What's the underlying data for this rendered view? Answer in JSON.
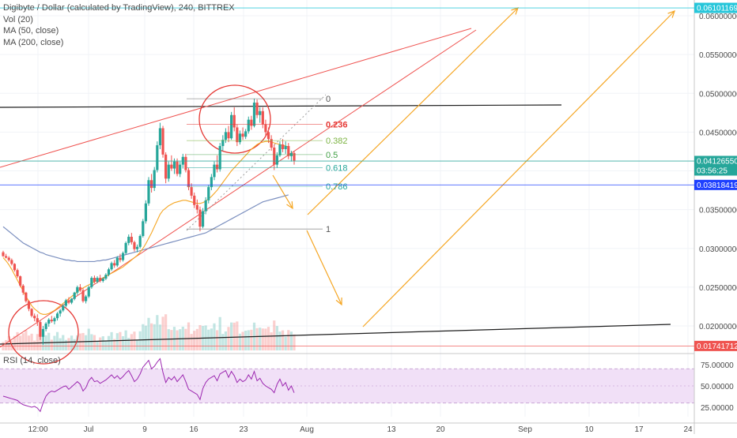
{
  "legend": {
    "title": "Digibyte / Dollar (calculated by TradingView), 240, BITTREX",
    "indicators": [
      "Vol (20)",
      "MA (50, close)",
      "MA (200, close)"
    ]
  },
  "rsi": {
    "label": "RSI (14, close)",
    "ticks": [
      "75.00000",
      "50.00000",
      "25.00000"
    ],
    "band": [
      30,
      70
    ]
  },
  "colors": {
    "up": "#26a69a",
    "down": "#ef5350",
    "ma50": "#f5a623",
    "ma200": "#7b8fbf",
    "rsi_line": "#9c27b0",
    "rsi_band": "#f1e0f7",
    "trend_red": "#ef5350",
    "arrow": "#f5a623",
    "support": "#1e1e1e",
    "price_tag": "#2962ff",
    "circle": "#e53935"
  },
  "chart_data": {
    "type": "candlestick",
    "ylim": [
      0.0172,
      0.0625
    ],
    "y_ticks": [
      "0.06000000",
      "0.05500000",
      "0.05000000",
      "0.04500000",
      "0.04000000",
      "0.03500000",
      "0.03000000",
      "0.02500000",
      "0.02000000"
    ],
    "x_ticks": [
      "12:00",
      "Jul",
      "9",
      "16",
      "23",
      "Aug",
      "13",
      "20",
      "Sep",
      "10",
      "17",
      "24"
    ],
    "price_labels": [
      {
        "text": "0.06101169",
        "value": 0.06101169,
        "style": "cyan"
      },
      {
        "text": "0.04126550",
        "value": 0.0412655,
        "style": "teal"
      },
      {
        "text": "03:56:25",
        "value": 0.0401,
        "style": "teal"
      },
      {
        "text": "0.03818419",
        "value": 0.03818419,
        "style": "blue"
      },
      {
        "text": "0.01741712",
        "value": 0.01741712,
        "style": "red"
      }
    ],
    "fib_levels": [
      {
        "label": "0",
        "value": 0.0493,
        "color": "#555555"
      },
      {
        "label": "0.236",
        "value": 0.046,
        "color": "#e53935"
      },
      {
        "label": "0.382",
        "value": 0.0439,
        "color": "#7cb342"
      },
      {
        "label": "0.5",
        "value": 0.0421,
        "color": "#43a047"
      },
      {
        "label": "0.618",
        "value": 0.0404,
        "color": "#26a69a"
      },
      {
        "label": "0.786",
        "value": 0.038,
        "color": "#26a69a"
      },
      {
        "label": "1",
        "value": 0.0325,
        "color": "#555555"
      }
    ],
    "candles": [
      [
        0.0295,
        0.0297,
        0.0289,
        0.029
      ],
      [
        0.029,
        0.0293,
        0.0287,
        0.0288
      ],
      [
        0.0288,
        0.029,
        0.0283,
        0.0285
      ],
      [
        0.0285,
        0.0287,
        0.0278,
        0.028
      ],
      [
        0.028,
        0.0281,
        0.027,
        0.0272
      ],
      [
        0.0272,
        0.0274,
        0.0262,
        0.0264
      ],
      [
        0.0264,
        0.0265,
        0.025,
        0.0252
      ],
      [
        0.0252,
        0.0254,
        0.024,
        0.0243
      ],
      [
        0.0243,
        0.0244,
        0.023,
        0.0232
      ],
      [
        0.0232,
        0.0233,
        0.0219,
        0.0222
      ],
      [
        0.0222,
        0.0223,
        0.0211,
        0.0213
      ],
      [
        0.0213,
        0.0216,
        0.0206,
        0.021
      ],
      [
        0.021,
        0.0215,
        0.02,
        0.0205
      ],
      [
        0.0205,
        0.0207,
        0.0182,
        0.0186
      ],
      [
        0.0186,
        0.02,
        0.0176,
        0.0196
      ],
      [
        0.0196,
        0.0205,
        0.0193,
        0.0203
      ],
      [
        0.0203,
        0.021,
        0.0199,
        0.0208
      ],
      [
        0.0208,
        0.0213,
        0.0204,
        0.0206
      ],
      [
        0.0206,
        0.0212,
        0.0202,
        0.021
      ],
      [
        0.021,
        0.0218,
        0.0207,
        0.0216
      ],
      [
        0.0216,
        0.0222,
        0.0212,
        0.022
      ],
      [
        0.022,
        0.0228,
        0.0218,
        0.0226
      ],
      [
        0.0226,
        0.0235,
        0.0224,
        0.0233
      ],
      [
        0.0233,
        0.0237,
        0.0228,
        0.023
      ],
      [
        0.023,
        0.0236,
        0.0228,
        0.0235
      ],
      [
        0.0235,
        0.0244,
        0.0233,
        0.0243
      ],
      [
        0.0243,
        0.0252,
        0.024,
        0.025
      ],
      [
        0.025,
        0.0254,
        0.0244,
        0.0246
      ],
      [
        0.0246,
        0.0249,
        0.023,
        0.0232
      ],
      [
        0.0232,
        0.024,
        0.0229,
        0.0238
      ],
      [
        0.0238,
        0.0252,
        0.0236,
        0.025
      ],
      [
        0.025,
        0.0264,
        0.0248,
        0.0262
      ],
      [
        0.0262,
        0.0265,
        0.0255,
        0.0257
      ],
      [
        0.0257,
        0.0264,
        0.0255,
        0.0262
      ],
      [
        0.0262,
        0.0266,
        0.0256,
        0.0258
      ],
      [
        0.0258,
        0.0263,
        0.0256,
        0.0261
      ],
      [
        0.0261,
        0.0268,
        0.0259,
        0.0266
      ],
      [
        0.0266,
        0.0275,
        0.0264,
        0.0273
      ],
      [
        0.0273,
        0.0283,
        0.0271,
        0.0281
      ],
      [
        0.0281,
        0.0285,
        0.0275,
        0.0278
      ],
      [
        0.0278,
        0.029,
        0.0276,
        0.0288
      ],
      [
        0.0288,
        0.0293,
        0.0282,
        0.0285
      ],
      [
        0.0285,
        0.0296,
        0.0283,
        0.0294
      ],
      [
        0.0294,
        0.0309,
        0.0292,
        0.0307
      ],
      [
        0.0307,
        0.0318,
        0.0304,
        0.0315
      ],
      [
        0.0315,
        0.032,
        0.0305,
        0.0308
      ],
      [
        0.0308,
        0.031,
        0.0296,
        0.0299
      ],
      [
        0.0299,
        0.0305,
        0.0295,
        0.0302
      ],
      [
        0.0302,
        0.0318,
        0.03,
        0.0316
      ],
      [
        0.0316,
        0.0338,
        0.0314,
        0.0335
      ],
      [
        0.0335,
        0.0362,
        0.0332,
        0.0358
      ],
      [
        0.0358,
        0.0392,
        0.0355,
        0.0388
      ],
      [
        0.0388,
        0.0396,
        0.0372,
        0.0378
      ],
      [
        0.0378,
        0.0405,
        0.0374,
        0.0401
      ],
      [
        0.0401,
        0.0438,
        0.0398,
        0.0433
      ],
      [
        0.0433,
        0.0462,
        0.0428,
        0.0455
      ],
      [
        0.0455,
        0.0458,
        0.0417,
        0.0421
      ],
      [
        0.0421,
        0.0424,
        0.0384,
        0.039
      ],
      [
        0.039,
        0.0412,
        0.0386,
        0.0408
      ],
      [
        0.0408,
        0.042,
        0.04,
        0.0403
      ],
      [
        0.0403,
        0.0416,
        0.0396,
        0.0412
      ],
      [
        0.0412,
        0.0416,
        0.0393,
        0.0396
      ],
      [
        0.0396,
        0.0412,
        0.0392,
        0.0408
      ],
      [
        0.0408,
        0.0422,
        0.0403,
        0.0418
      ],
      [
        0.0418,
        0.0422,
        0.0398,
        0.0401
      ],
      [
        0.0401,
        0.0404,
        0.0375,
        0.0379
      ],
      [
        0.0379,
        0.0384,
        0.0364,
        0.0368
      ],
      [
        0.0368,
        0.0372,
        0.0352,
        0.0356
      ],
      [
        0.0356,
        0.0363,
        0.0345,
        0.035
      ],
      [
        0.035,
        0.0354,
        0.0322,
        0.0328
      ],
      [
        0.0328,
        0.0352,
        0.0326,
        0.0348
      ],
      [
        0.0348,
        0.0366,
        0.0344,
        0.0362
      ],
      [
        0.0362,
        0.0382,
        0.0358,
        0.0379
      ],
      [
        0.0379,
        0.0396,
        0.0375,
        0.0392
      ],
      [
        0.0392,
        0.0412,
        0.0388,
        0.0408
      ],
      [
        0.0408,
        0.042,
        0.0398,
        0.0402
      ],
      [
        0.0402,
        0.0436,
        0.0399,
        0.0432
      ],
      [
        0.0432,
        0.0446,
        0.0426,
        0.044
      ],
      [
        0.044,
        0.0455,
        0.0436,
        0.045
      ],
      [
        0.045,
        0.0458,
        0.0437,
        0.0442
      ],
      [
        0.0442,
        0.0476,
        0.044,
        0.0472
      ],
      [
        0.0472,
        0.0482,
        0.0451,
        0.0456
      ],
      [
        0.0456,
        0.046,
        0.0432,
        0.0437
      ],
      [
        0.0437,
        0.0452,
        0.0434,
        0.0448
      ],
      [
        0.0448,
        0.0456,
        0.044,
        0.0444
      ],
      [
        0.0444,
        0.0454,
        0.0441,
        0.0451
      ],
      [
        0.0451,
        0.047,
        0.0448,
        0.0466
      ],
      [
        0.0466,
        0.0471,
        0.0453,
        0.0458
      ],
      [
        0.0458,
        0.0493,
        0.0456,
        0.0488
      ],
      [
        0.0488,
        0.0492,
        0.0468,
        0.0472
      ],
      [
        0.0472,
        0.0482,
        0.0462,
        0.0477
      ],
      [
        0.0477,
        0.0482,
        0.0455,
        0.046
      ],
      [
        0.046,
        0.0466,
        0.0444,
        0.045
      ],
      [
        0.045,
        0.0456,
        0.0436,
        0.0441
      ],
      [
        0.0441,
        0.0446,
        0.0426,
        0.043
      ],
      [
        0.043,
        0.0434,
        0.0401,
        0.0408
      ],
      [
        0.0408,
        0.0424,
        0.0404,
        0.042
      ],
      [
        0.042,
        0.0438,
        0.0418,
        0.0434
      ],
      [
        0.0434,
        0.0441,
        0.0424,
        0.0428
      ],
      [
        0.0428,
        0.0438,
        0.0422,
        0.0432
      ],
      [
        0.0432,
        0.0436,
        0.0415,
        0.0419
      ],
      [
        0.0419,
        0.0426,
        0.0412,
        0.0423
      ],
      [
        0.0423,
        0.0426,
        0.0408,
        0.0413
      ]
    ],
    "ma50": [
      0.0288,
      0.0284,
      0.0279,
      0.0273,
      0.0266,
      0.0259,
      0.0252,
      0.0245,
      0.0238,
      0.0232,
      0.0226,
      0.0222,
      0.0219,
      0.0216,
      0.0215,
      0.0215,
      0.0216,
      0.0218,
      0.022,
      0.0223,
      0.0226,
      0.0229,
      0.0232,
      0.0235,
      0.0238,
      0.0241,
      0.0244,
      0.0247,
      0.0249,
      0.0251,
      0.0253,
      0.0255,
      0.0257,
      0.0259,
      0.026,
      0.0262,
      0.0264,
      0.0266,
      0.0268,
      0.027,
      0.0272,
      0.0274,
      0.0276,
      0.0279,
      0.0282,
      0.0285,
      0.0288,
      0.0291,
      0.0295,
      0.03,
      0.0306,
      0.0313,
      0.032,
      0.0328,
      0.0336,
      0.0344,
      0.0349,
      0.0352,
      0.0355,
      0.0357,
      0.0359,
      0.036,
      0.0361,
      0.0362,
      0.0362,
      0.0361,
      0.036,
      0.0359,
      0.0358,
      0.0358,
      0.0359,
      0.0361,
      0.0364,
      0.0367,
      0.0371,
      0.0375,
      0.038,
      0.0385,
      0.039,
      0.0395,
      0.04,
      0.0404,
      0.0408,
      0.0412,
      0.0416,
      0.042,
      0.0424,
      0.0428,
      0.0431,
      0.0434,
      0.0436,
      0.0437,
      0.0438,
      0.0438,
      0.0437,
      0.0436,
      0.0435,
      0.0434,
      0.0433,
      0.0432,
      0.0431
    ],
    "ma200": [
      0.0328,
      0.0325,
      0.0322,
      0.0319,
      0.0316,
      0.0313,
      0.031,
      0.0307,
      0.0305,
      0.0303,
      0.0301,
      0.0299,
      0.0297,
      0.0295,
      0.0294,
      0.0292,
      0.0291,
      0.029,
      0.0289,
      0.0288,
      0.0287,
      0.0286,
      0.0285,
      0.0285,
      0.0284,
      0.0284,
      0.0283,
      0.0283,
      0.0283,
      0.0283,
      0.0283,
      0.0283,
      0.0283,
      0.0284,
      0.0284,
      0.0285,
      0.0285,
      0.0286,
      0.0287,
      0.0288,
      0.0289,
      0.029,
      0.0291,
      0.0292,
      0.0293,
      0.0294,
      0.0295,
      0.0296,
      0.0297,
      0.0298,
      0.0299,
      0.03,
      0.0301,
      0.0302,
      0.0303,
      0.0304,
      0.0305,
      0.0306,
      0.0307,
      0.0308,
      0.0309,
      0.031,
      0.0311,
      0.0312,
      0.0313,
      0.0314,
      0.0315,
      0.0316,
      0.0317,
      0.0318,
      0.0319,
      0.032,
      0.0322,
      0.0324,
      0.0326,
      0.0328,
      0.033,
      0.0332,
      0.0334,
      0.0336,
      0.0338,
      0.034,
      0.0342,
      0.0344,
      0.0346,
      0.0348,
      0.035,
      0.0352,
      0.0354,
      0.0356,
      0.0358,
      0.036,
      0.0361,
      0.0362,
      0.0363,
      0.0364,
      0.0365,
      0.0366,
      0.0367,
      0.0368,
      0.0369
    ],
    "rsi": [
      38,
      37,
      36,
      35,
      34,
      33,
      30,
      28,
      27,
      26,
      25,
      26,
      24,
      20,
      30,
      38,
      42,
      44,
      43,
      45,
      47,
      49,
      50,
      46,
      49,
      52,
      55,
      52,
      44,
      48,
      56,
      60,
      55,
      56,
      53,
      55,
      57,
      60,
      63,
      59,
      62,
      58,
      61,
      65,
      68,
      62,
      55,
      58,
      64,
      72,
      76,
      80,
      70,
      73,
      78,
      82,
      66,
      54,
      60,
      57,
      61,
      55,
      59,
      63,
      55,
      46,
      44,
      42,
      40,
      34,
      47,
      54,
      58,
      60,
      62,
      56,
      64,
      66,
      68,
      60,
      67,
      62,
      54,
      58,
      55,
      57,
      63,
      58,
      67,
      56,
      59,
      53,
      50,
      48,
      46,
      42,
      52,
      58,
      50,
      54,
      45,
      50,
      42
    ]
  }
}
